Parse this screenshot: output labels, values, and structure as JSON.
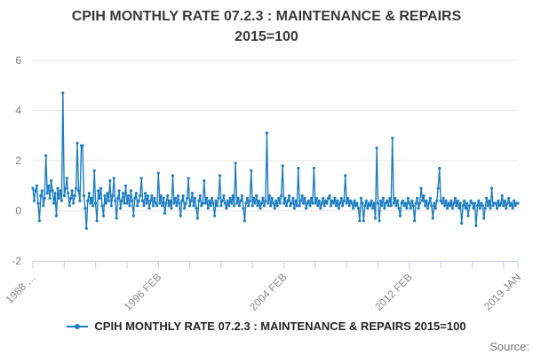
{
  "title": {
    "line1": "CPIH MONTHLY RATE 07.2.3 : MAINTENANCE & REPAIRS",
    "line2": "2015=100"
  },
  "legend": {
    "label": "CPIH MONTHLY RATE 07.2.3 : MAINTENANCE & REPAIRS 2015=100"
  },
  "footer": {
    "source_label": "Source:"
  },
  "colors": {
    "series": "#1d7ec3",
    "grid": "#e7e7e7",
    "axis": "#c9d4e6",
    "tick_text": "#8c8c8c",
    "y_tick_text": "#7f7f7f",
    "title_text": "#3a3a3a",
    "legend_text": "#262626",
    "source_text": "#737373"
  },
  "chart_data": {
    "type": "line",
    "title": "CPIH MONTHLY RATE 07.2.3 : MAINTENANCE & REPAIRS 2015=100",
    "xlabel": "",
    "ylabel": "",
    "ylim": [
      -2,
      6
    ],
    "y_ticks": [
      -2,
      0,
      2,
      4,
      6
    ],
    "grid": "horizontal",
    "legend_position": "bottom",
    "markers": true,
    "x_start": "1988 FEB",
    "x_end": "2019 JAN",
    "frequency": "monthly",
    "x_axis_tick_labels": [
      {
        "month_index": 0,
        "label": "1988 …"
      },
      {
        "month_index": 96,
        "label": "1996 FEB"
      },
      {
        "month_index": 192,
        "label": "2004 FEB"
      },
      {
        "month_index": 288,
        "label": "2012 FEB"
      },
      {
        "month_index": 371,
        "label": "2019 JAN"
      }
    ],
    "minor_tick_every_months": 24,
    "series": [
      {
        "name": "CPIH MONTHLY RATE 07.2.3 : MAINTENANCE & REPAIRS 2015=100",
        "color": "#1d7ec3",
        "values": [
          0.9,
          0.4,
          0.8,
          1.0,
          0.3,
          -0.4,
          0.6,
          0.8,
          0.2,
          0.5,
          2.2,
          0.7,
          1.0,
          0.5,
          1.2,
          0.8,
          0.3,
          0.7,
          -0.2,
          0.9,
          0.5,
          0.8,
          0.4,
          4.7,
          0.6,
          0.9,
          1.3,
          0.7,
          0.2,
          0.5,
          0.8,
          0.3,
          0.6,
          0.9,
          2.7,
          0.8,
          0.4,
          2.6,
          2.6,
          0.6,
          0.1,
          -0.7,
          0.4,
          0.7,
          0.3,
          0.5,
          0.2,
          1.6,
          0.3,
          -0.4,
          0.8,
          0.5,
          0.9,
          0.2,
          -0.2,
          0.6,
          0.3,
          0.7,
          0.4,
          1.2,
          0.2,
          0.6,
          1.3,
          0.4,
          -0.3,
          0.5,
          0.8,
          0.1,
          0.4,
          0.7,
          0.3,
          1.0,
          0.3,
          0.6,
          0.2,
          0.8,
          0.4,
          -0.2,
          0.5,
          0.7,
          0.2,
          0.4,
          0.6,
          1.3,
          0.4,
          0.2,
          0.7,
          0.3,
          0.6,
          0.1,
          0.4,
          0.6,
          0.2,
          0.5,
          0.3,
          0.2,
          1.5,
          0.3,
          0.6,
          0.2,
          0.5,
          -0.1,
          0.3,
          0.6,
          0.2,
          0.4,
          0.1,
          1.4,
          0.3,
          0.5,
          0.2,
          0.6,
          0.3,
          -0.2,
          0.4,
          0.6,
          0.1,
          0.3,
          0.5,
          1.3,
          0.2,
          0.4,
          0.7,
          0.2,
          0.5,
          0.1,
          -0.3,
          0.4,
          0.6,
          0.2,
          0.3,
          1.2,
          0.3,
          0.5,
          0.1,
          0.4,
          0.2,
          0.5,
          0.3,
          -0.2,
          0.4,
          0.2,
          0.5,
          1.4,
          0.2,
          0.4,
          0.6,
          0.3,
          0.1,
          0.4,
          0.2,
          0.5,
          0.3,
          0.6,
          0.2,
          1.9,
          0.3,
          0.5,
          0.2,
          0.4,
          0.6,
          0.1,
          -0.4,
          0.3,
          0.5,
          0.2,
          0.4,
          1.6,
          0.2,
          0.5,
          0.3,
          0.6,
          0.2,
          0.4,
          0.1,
          0.3,
          0.5,
          0.2,
          0.4,
          3.1,
          0.3,
          0.6,
          0.2,
          0.5,
          0.3,
          0.1,
          0.4,
          0.2,
          0.5,
          0.3,
          0.6,
          1.8,
          0.3,
          0.5,
          0.2,
          0.4,
          0.6,
          0.2,
          0.3,
          0.5,
          0.1,
          0.4,
          0.2,
          1.7,
          0.2,
          0.4,
          0.6,
          0.3,
          0.5,
          0.1,
          0.3,
          0.4,
          0.2,
          0.5,
          0.3,
          1.7,
          0.3,
          0.5,
          0.2,
          0.4,
          0.1,
          0.3,
          0.5,
          0.2,
          0.4,
          0.3,
          0.5,
          0.6,
          0.2,
          0.4,
          0.3,
          0.5,
          0.2,
          0.4,
          0.1,
          0.3,
          0.5,
          0.2,
          0.4,
          1.4,
          0.3,
          0.5,
          0.2,
          0.4,
          0.3,
          0.1,
          0.4,
          0.2,
          0.3,
          0.1,
          -0.4,
          0.5,
          0.3,
          -0.4,
          0.2,
          0.4,
          0.1,
          0.3,
          0.2,
          0.4,
          0.1,
          0.3,
          -0.3,
          2.5,
          0.3,
          -0.4,
          0.4,
          0.2,
          0.5,
          0.1,
          0.3,
          0.4,
          0.2,
          0.5,
          0.2,
          2.9,
          0.3,
          0.5,
          0.2,
          0.4,
          0.1,
          -0.2,
          0.3,
          0.4,
          0.2,
          0.3,
          0.1,
          0.5,
          0.3,
          0.1,
          0.4,
          0.2,
          -0.4,
          0.3,
          0.5,
          0.1,
          0.3,
          0.9,
          0.4,
          0.6,
          0.2,
          0.4,
          0.1,
          0.3,
          0.5,
          0.2,
          -0.3,
          0.3,
          0.1,
          0.4,
          0.9,
          1.7,
          0.4,
          0.3,
          0.5,
          0.2,
          0.4,
          0.1,
          0.3,
          0.2,
          0.4,
          0.1,
          0.3,
          0.5,
          0.2,
          0.4,
          0.1,
          0.3,
          -0.5,
          0.2,
          0.4,
          0.1,
          0.3,
          -0.2,
          0.2,
          0.4,
          0.3,
          0.1,
          0.3,
          -0.6,
          0.2,
          0.4,
          0.1,
          0.3,
          0.2,
          -0.3,
          0.1,
          0.5,
          0.2,
          0.4,
          0.1,
          0.9,
          0.2,
          0.3,
          0.3,
          0.1,
          0.4,
          0.2,
          0.3,
          0.6,
          0.2,
          0.4,
          0.1,
          0.3,
          0.5,
          0.2,
          0.3,
          0.1,
          0.4,
          0.2,
          0.3,
          0.3
        ]
      }
    ]
  }
}
